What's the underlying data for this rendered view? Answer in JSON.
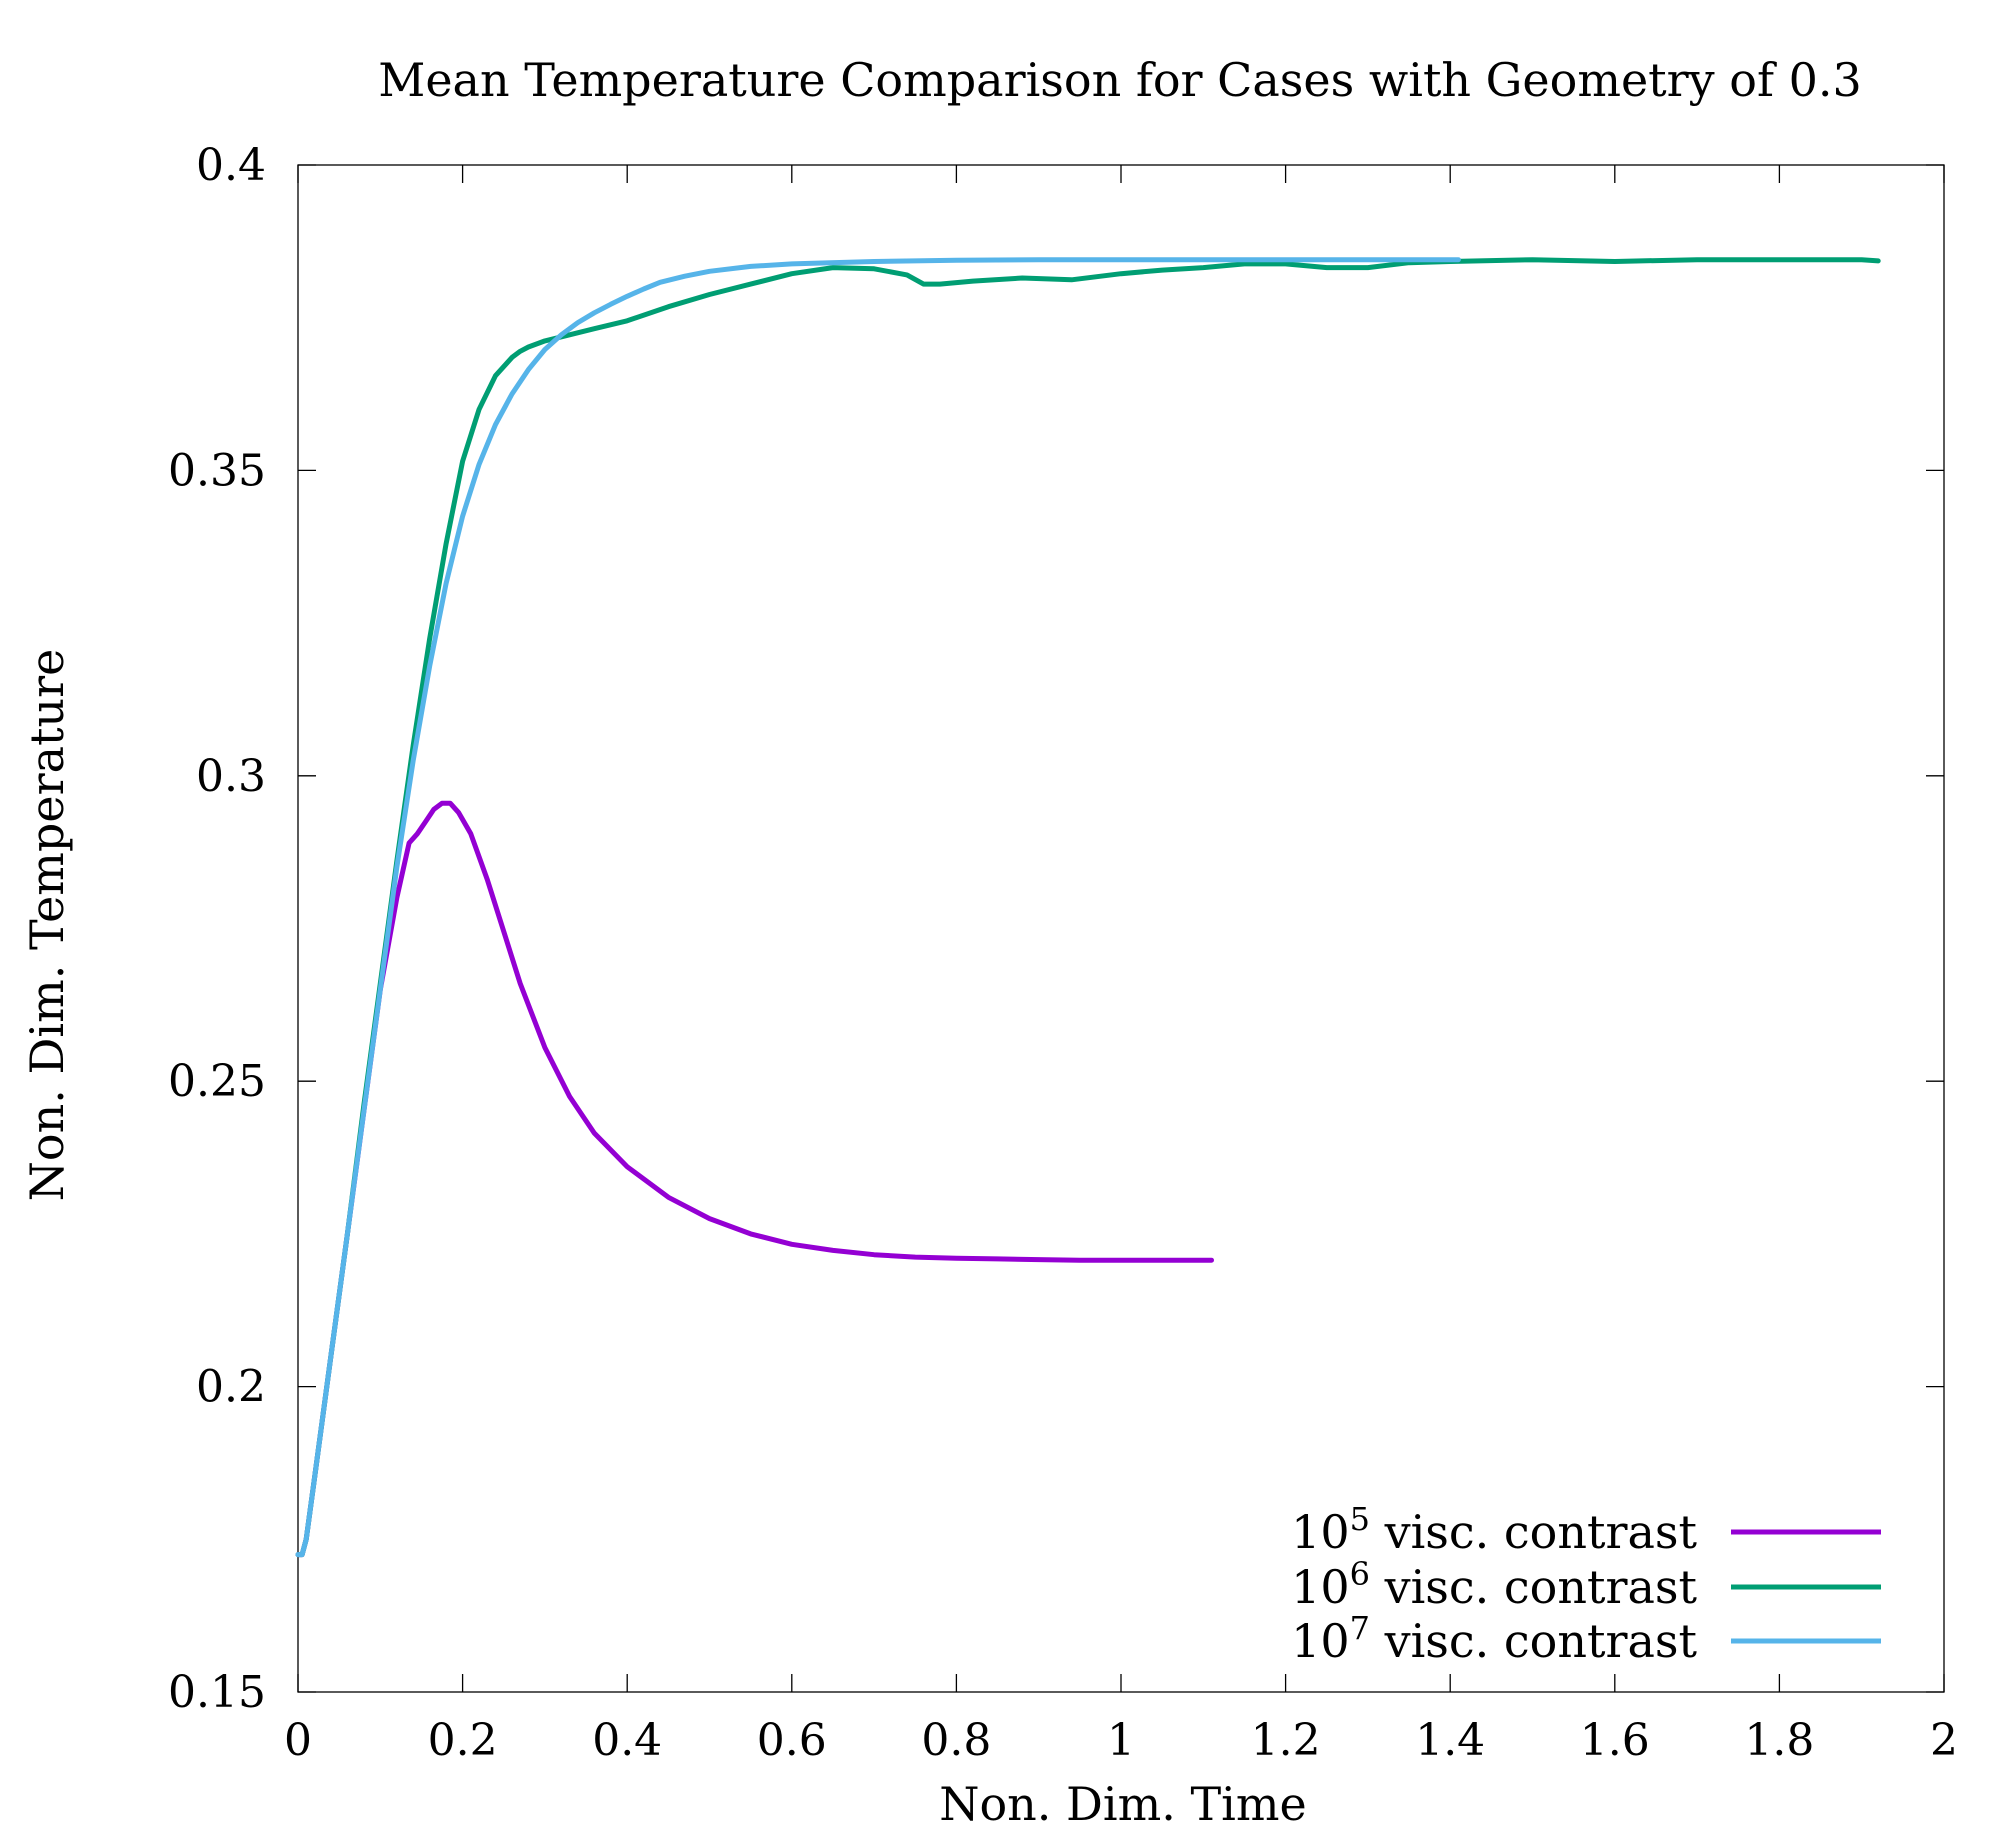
{
  "chart_data": {
    "type": "line",
    "title": "Mean Temperature Comparison for Cases with Geometry of 0.3",
    "xlabel": "Non. Dim. Time",
    "ylabel": "Non. Dim. Temperature",
    "xlim": [
      0,
      2
    ],
    "ylim": [
      0.15,
      0.4
    ],
    "x_ticks": [
      0,
      0.2,
      0.4,
      0.6,
      0.8,
      1,
      1.2,
      1.4,
      1.6,
      1.8,
      2
    ],
    "x_tick_labels": [
      "0",
      "0.2",
      "0.4",
      "0.6",
      "0.8",
      "1",
      "1.2",
      "1.4",
      "1.6",
      "1.8",
      "2"
    ],
    "y_ticks": [
      0.15,
      0.2,
      0.25,
      0.3,
      0.35,
      0.4
    ],
    "y_tick_labels": [
      "0.15",
      "0.2",
      "0.25",
      "0.3",
      "0.35",
      "0.4"
    ],
    "grid": false,
    "legend_position": "bottom-right",
    "series": [
      {
        "name": "10^5 visc. contrast",
        "legend_base": "10",
        "legend_exp": "5",
        "legend_rest": " visc. contrast",
        "color": "#9400D3",
        "points": [
          [
            0,
            0.1725
          ],
          [
            0.005,
            0.1725
          ],
          [
            0.01,
            0.175
          ],
          [
            0.02,
            0.185
          ],
          [
            0.04,
            0.205
          ],
          [
            0.06,
            0.225
          ],
          [
            0.08,
            0.245
          ],
          [
            0.1,
            0.265
          ],
          [
            0.12,
            0.28
          ],
          [
            0.135,
            0.289
          ],
          [
            0.145,
            0.2905
          ],
          [
            0.155,
            0.2925
          ],
          [
            0.165,
            0.2945
          ],
          [
            0.175,
            0.2955
          ],
          [
            0.185,
            0.2955
          ],
          [
            0.195,
            0.294
          ],
          [
            0.21,
            0.2905
          ],
          [
            0.23,
            0.283
          ],
          [
            0.25,
            0.2745
          ],
          [
            0.27,
            0.266
          ],
          [
            0.3,
            0.2555
          ],
          [
            0.33,
            0.2475
          ],
          [
            0.36,
            0.2415
          ],
          [
            0.4,
            0.236
          ],
          [
            0.45,
            0.231
          ],
          [
            0.5,
            0.2275
          ],
          [
            0.55,
            0.225
          ],
          [
            0.6,
            0.2233
          ],
          [
            0.65,
            0.2223
          ],
          [
            0.7,
            0.2216
          ],
          [
            0.75,
            0.2212
          ],
          [
            0.8,
            0.221
          ],
          [
            0.85,
            0.2209
          ],
          [
            0.9,
            0.2208
          ],
          [
            0.95,
            0.2207
          ],
          [
            1.0,
            0.2207
          ],
          [
            1.05,
            0.2207
          ],
          [
            1.11,
            0.2207
          ]
        ]
      },
      {
        "name": "10^6 visc. contrast",
        "legend_base": "10",
        "legend_exp": "6",
        "legend_rest": " visc. contrast",
        "color": "#009E73",
        "points": [
          [
            0,
            0.1725
          ],
          [
            0.005,
            0.1725
          ],
          [
            0.01,
            0.175
          ],
          [
            0.02,
            0.185
          ],
          [
            0.04,
            0.205
          ],
          [
            0.06,
            0.225
          ],
          [
            0.08,
            0.246
          ],
          [
            0.1,
            0.266
          ],
          [
            0.12,
            0.286
          ],
          [
            0.14,
            0.305
          ],
          [
            0.16,
            0.3225
          ],
          [
            0.18,
            0.338
          ],
          [
            0.2,
            0.3515
          ],
          [
            0.22,
            0.36
          ],
          [
            0.24,
            0.3655
          ],
          [
            0.26,
            0.3685
          ],
          [
            0.27,
            0.3695
          ],
          [
            0.28,
            0.3702
          ],
          [
            0.3,
            0.3712
          ],
          [
            0.33,
            0.3722
          ],
          [
            0.36,
            0.3732
          ],
          [
            0.4,
            0.3745
          ],
          [
            0.45,
            0.3768
          ],
          [
            0.5,
            0.3788
          ],
          [
            0.55,
            0.3805
          ],
          [
            0.6,
            0.3822
          ],
          [
            0.65,
            0.3832
          ],
          [
            0.7,
            0.383
          ],
          [
            0.74,
            0.382
          ],
          [
            0.76,
            0.3805
          ],
          [
            0.78,
            0.3805
          ],
          [
            0.82,
            0.381
          ],
          [
            0.88,
            0.3815
          ],
          [
            0.94,
            0.3812
          ],
          [
            1.0,
            0.3822
          ],
          [
            1.05,
            0.3828
          ],
          [
            1.1,
            0.3832
          ],
          [
            1.15,
            0.3838
          ],
          [
            1.2,
            0.3838
          ],
          [
            1.25,
            0.3832
          ],
          [
            1.3,
            0.3832
          ],
          [
            1.35,
            0.384
          ],
          [
            1.4,
            0.3842
          ],
          [
            1.5,
            0.3845
          ],
          [
            1.6,
            0.3842
          ],
          [
            1.7,
            0.3845
          ],
          [
            1.8,
            0.3845
          ],
          [
            1.9,
            0.3845
          ],
          [
            1.92,
            0.3843
          ]
        ]
      },
      {
        "name": "10^7 visc. contrast",
        "legend_base": "10",
        "legend_exp": "7",
        "legend_rest": " visc. contrast",
        "color": "#56B4E9",
        "points": [
          [
            0,
            0.1725
          ],
          [
            0.005,
            0.1725
          ],
          [
            0.01,
            0.175
          ],
          [
            0.02,
            0.185
          ],
          [
            0.04,
            0.205
          ],
          [
            0.06,
            0.225
          ],
          [
            0.08,
            0.245
          ],
          [
            0.1,
            0.265
          ],
          [
            0.12,
            0.285
          ],
          [
            0.14,
            0.3025
          ],
          [
            0.16,
            0.318
          ],
          [
            0.18,
            0.3315
          ],
          [
            0.2,
            0.3425
          ],
          [
            0.22,
            0.351
          ],
          [
            0.24,
            0.3575
          ],
          [
            0.26,
            0.3625
          ],
          [
            0.28,
            0.3665
          ],
          [
            0.3,
            0.3698
          ],
          [
            0.32,
            0.3722
          ],
          [
            0.34,
            0.3742
          ],
          [
            0.36,
            0.3758
          ],
          [
            0.38,
            0.3772
          ],
          [
            0.4,
            0.3785
          ],
          [
            0.42,
            0.3797
          ],
          [
            0.44,
            0.3808
          ],
          [
            0.47,
            0.3818
          ],
          [
            0.5,
            0.3826
          ],
          [
            0.55,
            0.3834
          ],
          [
            0.6,
            0.3838
          ],
          [
            0.7,
            0.3842
          ],
          [
            0.8,
            0.3844
          ],
          [
            0.9,
            0.3845
          ],
          [
            1.0,
            0.3845
          ],
          [
            1.1,
            0.3845
          ],
          [
            1.2,
            0.3845
          ],
          [
            1.3,
            0.3845
          ],
          [
            1.41,
            0.3845
          ]
        ]
      }
    ]
  }
}
